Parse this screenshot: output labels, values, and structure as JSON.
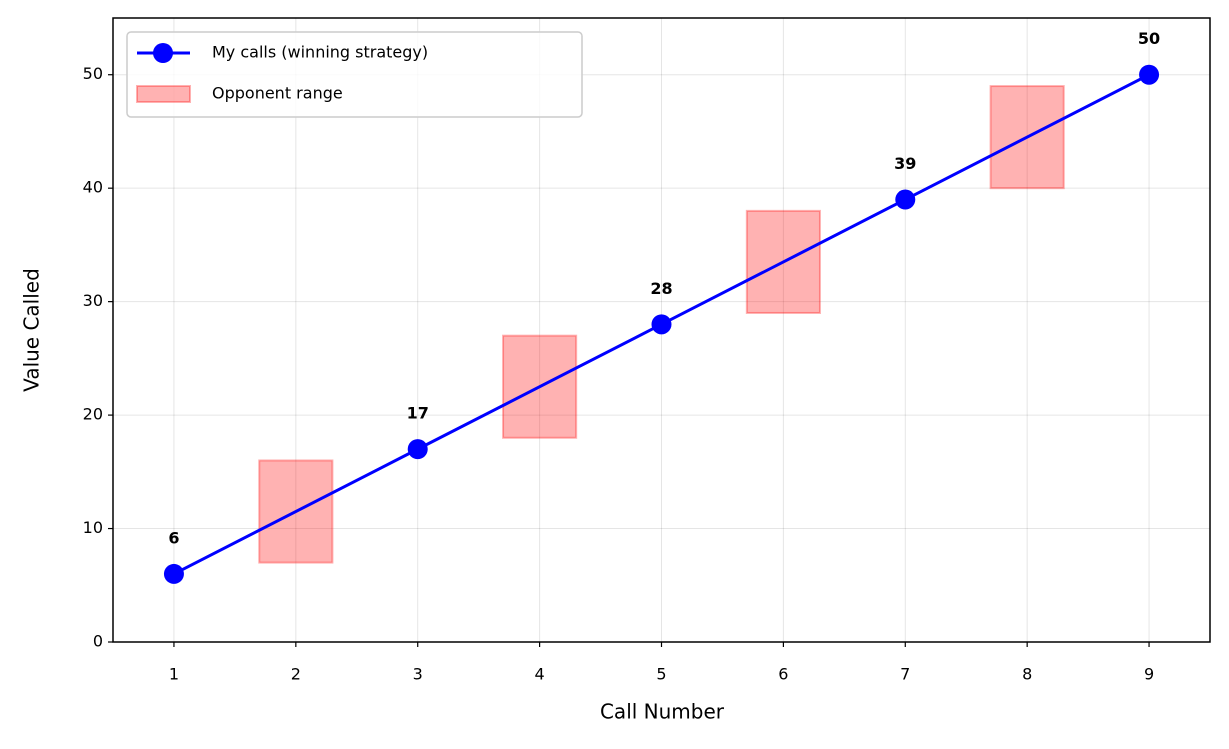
{
  "chart_data": {
    "type": "line",
    "x_label": "Call Number",
    "y_label": "Value Called",
    "series": [
      {
        "name": "My calls (winning strategy)",
        "color": "#0000ff",
        "x": [
          1,
          3,
          5,
          7,
          9
        ],
        "values": [
          6,
          17,
          28,
          39,
          50
        ]
      },
      {
        "name": "Opponent range",
        "type": "range",
        "color": "#ff0000",
        "x": [
          2,
          4,
          6,
          8
        ],
        "low": [
          7,
          18,
          29,
          40
        ],
        "high": [
          16,
          27,
          38,
          49
        ]
      }
    ],
    "xlim": [
      0.5,
      9.5
    ],
    "xticks": [
      1,
      2,
      3,
      4,
      5,
      6,
      7,
      8,
      9
    ],
    "ylim": [
      0,
      55
    ],
    "yticks": [
      0,
      10,
      20,
      30,
      40,
      50
    ],
    "grid": true,
    "legend": "upper left"
  }
}
